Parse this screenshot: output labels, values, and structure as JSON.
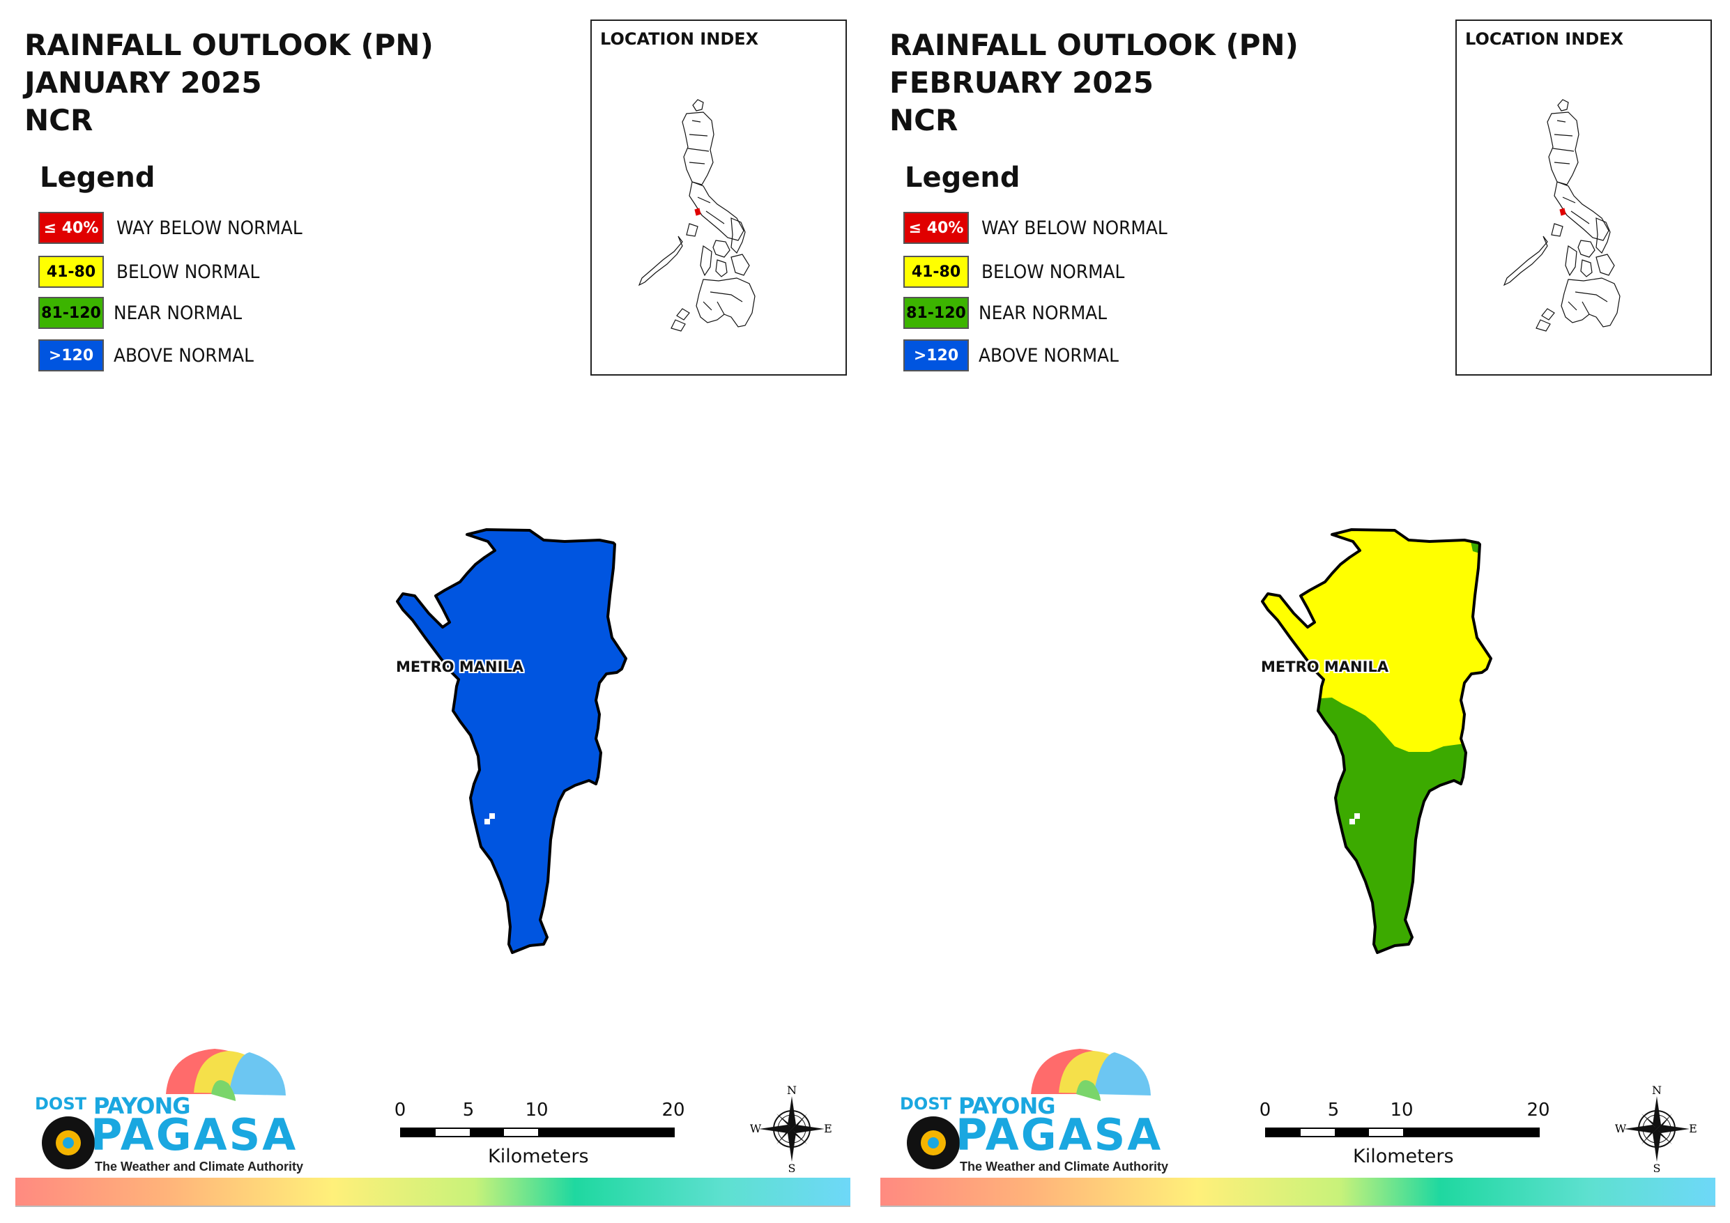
{
  "panels": [
    {
      "title_line1": "RAINFALL OUTLOOK (PN)",
      "title_line2": "JANUARY 2025",
      "title_line3": "NCR",
      "map_label": "METRO MANILA",
      "outlook_fill": "above normal (>120)"
    },
    {
      "title_line1": "RAINFALL OUTLOOK (PN)",
      "title_line2": "FEBRUARY 2025",
      "title_line3": "NCR",
      "map_label": "METRO MANILA",
      "outlook_fill": "below normal (41-80) north, near normal (81-120) south"
    }
  ],
  "legend": {
    "title": "Legend",
    "items": [
      {
        "range": "≤ 40%",
        "label": "WAY BELOW NORMAL",
        "color": "#e00000",
        "text_color": "#ffffff"
      },
      {
        "range": "41-80",
        "label": "BELOW NORMAL",
        "color": "#ffff00",
        "text_color": "#000000"
      },
      {
        "range": "81-120",
        "label": "NEAR NORMAL",
        "color": "#3cb400",
        "text_color": "#000000"
      },
      {
        "range": ">120",
        "label": "ABOVE NORMAL",
        "color": "#0055e0",
        "text_color": "#ffffff"
      }
    ]
  },
  "location_index": {
    "title": "LOCATION INDEX"
  },
  "scale_bar": {
    "ticks": [
      "0",
      "5",
      "10",
      "20"
    ],
    "tick_values_km": [
      0,
      5,
      10,
      20
    ],
    "unit": "Kilometers"
  },
  "compass": {
    "n": "N",
    "e": "E",
    "s": "S",
    "w": "W"
  },
  "logo": {
    "dost": "DOST",
    "payong": "PAYONG",
    "pagasa": "PAGASA",
    "tagline": "The Weather and Climate Authority"
  },
  "colors": {
    "above_normal": "#0055e0",
    "below_normal": "#ffff00",
    "near_normal": "#3caa00",
    "way_below_normal": "#e00000"
  }
}
